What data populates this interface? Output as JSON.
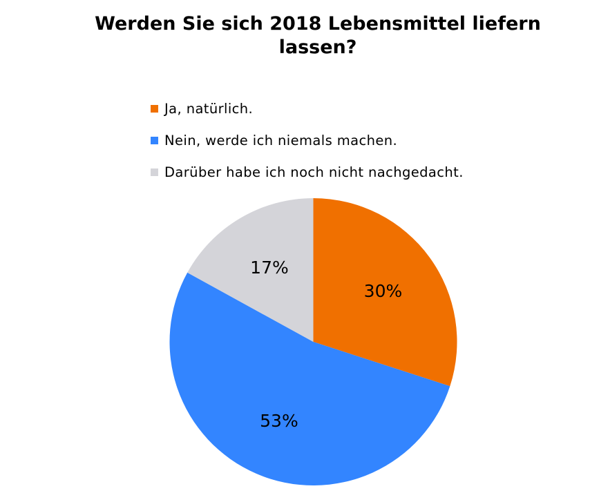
{
  "chart_data": {
    "type": "pie",
    "title": "Werden Sie sich 2018 Lebensmittel liefern lassen?",
    "categories": [
      "Ja, natürlich.",
      "Nein, werde ich niemals machen.",
      "Darüber habe ich noch nicht nachgedacht."
    ],
    "values": [
      30,
      53,
      17
    ],
    "value_labels": [
      "30%",
      "53%",
      "17%"
    ],
    "colors": [
      "#f07000",
      "#3385ff",
      "#d4d4d9"
    ],
    "legend_position": "top"
  }
}
